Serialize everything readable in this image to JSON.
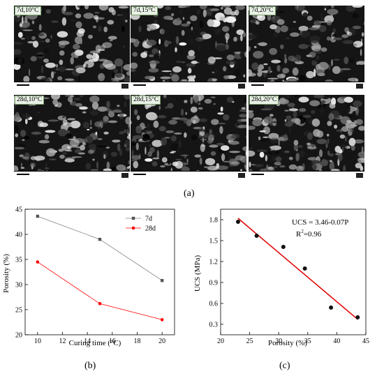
{
  "figure": {
    "label_a": "(a)",
    "label_b": "(b)",
    "label_c": "(c)"
  },
  "sem_panels": [
    {
      "label": "7d,10°C"
    },
    {
      "label": "7d,15°C"
    },
    {
      "label": "7d,20°C"
    },
    {
      "label": "28d,10°C"
    },
    {
      "label": "28d,15°C"
    },
    {
      "label": "28d,20°C"
    }
  ],
  "chart_data": [
    {
      "type": "line",
      "xlabel": "Curing time (°C)",
      "ylabel": "Porosity (%)",
      "xlim": [
        9,
        21
      ],
      "ylim": [
        20,
        45
      ],
      "xticks": [
        10,
        12,
        14,
        16,
        18,
        20
      ],
      "yticks": [
        20,
        25,
        30,
        35,
        40,
        45
      ],
      "legend_position": "top-right",
      "grid": false,
      "series": [
        {
          "name": "7d",
          "color": "#808080",
          "marker": "square",
          "x": [
            10,
            15,
            20
          ],
          "y": [
            43.6,
            39.0,
            30.8
          ]
        },
        {
          "name": "28d",
          "color": "#ff0000",
          "marker": "circle",
          "x": [
            10,
            15,
            20
          ],
          "y": [
            34.5,
            26.2,
            23.0
          ]
        }
      ]
    },
    {
      "type": "scatter",
      "xlabel": "Porosity (%)",
      "ylabel": "UCS (MPa)",
      "xlim": [
        20,
        45
      ],
      "ylim": [
        0.15,
        1.95
      ],
      "xticks": [
        20,
        25,
        30,
        35,
        40,
        45
      ],
      "yticks": [
        0.3,
        0.6,
        0.9,
        1.2,
        1.5,
        1.8
      ],
      "ytick_labels": [
        "0.3",
        "0.6",
        "0.9",
        "1.2",
        "1.5",
        "1.8"
      ],
      "grid": false,
      "points": {
        "x": [
          23.0,
          26.2,
          30.8,
          34.5,
          39.0,
          43.6
        ],
        "y": [
          1.77,
          1.57,
          1.41,
          1.1,
          0.54,
          0.4
        ]
      },
      "fit_line": {
        "x": [
          23.0,
          43.6
        ],
        "y": [
          1.82,
          0.37
        ],
        "color": "#e00000"
      },
      "annotation_line1": "UCS = 3.46-0.07P",
      "annotation_r2": "R",
      "annotation_r2_sup": "2",
      "annotation_r2_val": "=0.96"
    }
  ]
}
